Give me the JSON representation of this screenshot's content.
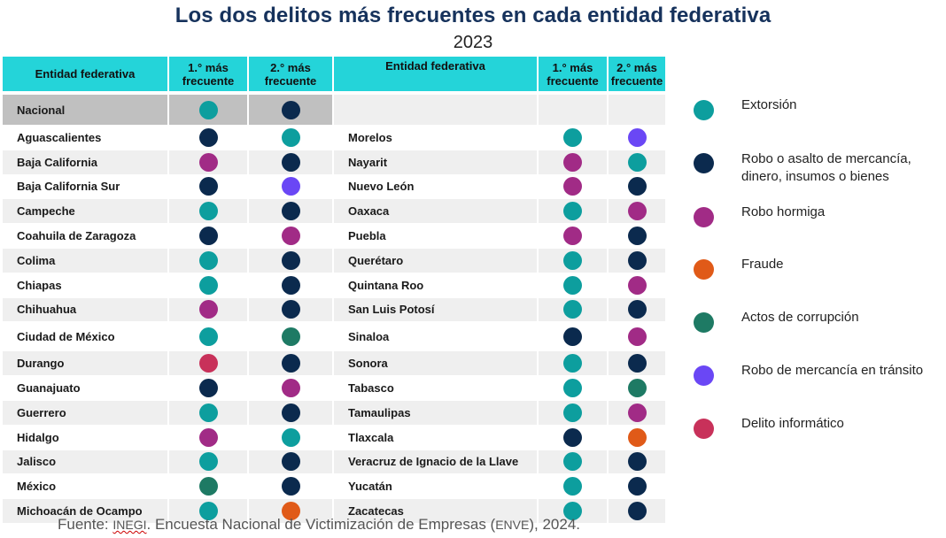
{
  "title": "Los dos delitos más frecuentes en cada entidad federativa",
  "subtitle": "2023",
  "headers": {
    "entity": "Entidad federativa",
    "first": "1.° más frecuente",
    "second": "2.° más frecuente"
  },
  "colors": {
    "extorsion": "#0d9e9e",
    "robo_asalto": "#0b2a4e",
    "robo_hormiga": "#a12b86",
    "fraude": "#e05a18",
    "corrupcion": "#1e7a64",
    "transito": "#6a47f5",
    "informatico": "#c8315a"
  },
  "legend": [
    {
      "key": "extorsion",
      "lines": [
        "Extorsión"
      ]
    },
    {
      "key": "robo_asalto",
      "lines": [
        "Robo o asalto de mercancía,",
        "dinero, insumos o bienes"
      ]
    },
    {
      "key": "robo_hormiga",
      "lines": [
        "Robo hormiga"
      ]
    },
    {
      "key": "fraude",
      "lines": [
        "Fraude"
      ]
    },
    {
      "key": "corrupcion",
      "lines": [
        "Actos de corrupción"
      ]
    },
    {
      "key": "transito",
      "lines": [
        "Robo de mercancía en tránsito"
      ]
    },
    {
      "key": "informatico",
      "lines": [
        "Delito informático"
      ]
    }
  ],
  "source": {
    "prefix": "Fuente: ",
    "inegi": "INEGI",
    "middle": ". Encuesta Nacional de Victimización de Empresas (",
    "enve": "ENVE",
    "suffix": "), 2024."
  },
  "chart_data": {
    "type": "table",
    "title": "Los dos delitos más frecuentes en cada entidad federativa",
    "subtitle": "2023",
    "columns": [
      "Entidad federativa",
      "1.° más frecuente",
      "2.° más frecuente"
    ],
    "national": {
      "entity": "Nacional",
      "first": "extorsion",
      "second": "robo_asalto"
    },
    "left": [
      {
        "entity": "Aguascalientes",
        "first": "robo_asalto",
        "second": "extorsion"
      },
      {
        "entity": "Baja California",
        "first": "robo_hormiga",
        "second": "robo_asalto"
      },
      {
        "entity": "Baja California Sur",
        "first": "robo_asalto",
        "second": "transito"
      },
      {
        "entity": "Campeche",
        "first": "extorsion",
        "second": "robo_asalto"
      },
      {
        "entity": "Coahuila de Zaragoza",
        "first": "robo_asalto",
        "second": "robo_hormiga"
      },
      {
        "entity": "Colima",
        "first": "extorsion",
        "second": "robo_asalto"
      },
      {
        "entity": "Chiapas",
        "first": "extorsion",
        "second": "robo_asalto"
      },
      {
        "entity": "Chihuahua",
        "first": "robo_hormiga",
        "second": "robo_asalto"
      },
      {
        "entity": "Ciudad de México",
        "first": "extorsion",
        "second": "corrupcion"
      },
      {
        "entity": "Durango",
        "first": "informatico",
        "second": "robo_asalto"
      },
      {
        "entity": "Guanajuato",
        "first": "robo_asalto",
        "second": "robo_hormiga"
      },
      {
        "entity": "Guerrero",
        "first": "extorsion",
        "second": "robo_asalto"
      },
      {
        "entity": "Hidalgo",
        "first": "robo_hormiga",
        "second": "extorsion"
      },
      {
        "entity": "Jalisco",
        "first": "extorsion",
        "second": "robo_asalto"
      },
      {
        "entity": "México",
        "first": "corrupcion",
        "second": "robo_asalto"
      },
      {
        "entity": "Michoacán de Ocampo",
        "first": "extorsion",
        "second": "fraude"
      }
    ],
    "right": [
      {
        "entity": "Morelos",
        "first": "extorsion",
        "second": "transito"
      },
      {
        "entity": "Nayarit",
        "first": "robo_hormiga",
        "second": "extorsion"
      },
      {
        "entity": "Nuevo León",
        "first": "robo_hormiga",
        "second": "robo_asalto"
      },
      {
        "entity": "Oaxaca",
        "first": "extorsion",
        "second": "robo_hormiga"
      },
      {
        "entity": "Puebla",
        "first": "robo_hormiga",
        "second": "robo_asalto"
      },
      {
        "entity": "Querétaro",
        "first": "extorsion",
        "second": "robo_asalto"
      },
      {
        "entity": "Quintana Roo",
        "first": "extorsion",
        "second": "robo_hormiga"
      },
      {
        "entity": "San Luis Potosí",
        "first": "extorsion",
        "second": "robo_asalto"
      },
      {
        "entity": "Sinaloa",
        "first": "robo_asalto",
        "second": "robo_hormiga"
      },
      {
        "entity": "Sonora",
        "first": "extorsion",
        "second": "robo_asalto"
      },
      {
        "entity": "Tabasco",
        "first": "extorsion",
        "second": "corrupcion"
      },
      {
        "entity": "Tamaulipas",
        "first": "extorsion",
        "second": "robo_hormiga"
      },
      {
        "entity": "Tlaxcala",
        "first": "robo_asalto",
        "second": "fraude"
      },
      {
        "entity": "Veracruz de Ignacio de la Llave",
        "first": "extorsion",
        "second": "robo_asalto"
      },
      {
        "entity": "Yucatán",
        "first": "extorsion",
        "second": "robo_asalto"
      },
      {
        "entity": "Zacatecas",
        "first": "extorsion",
        "second": "robo_asalto"
      }
    ]
  }
}
